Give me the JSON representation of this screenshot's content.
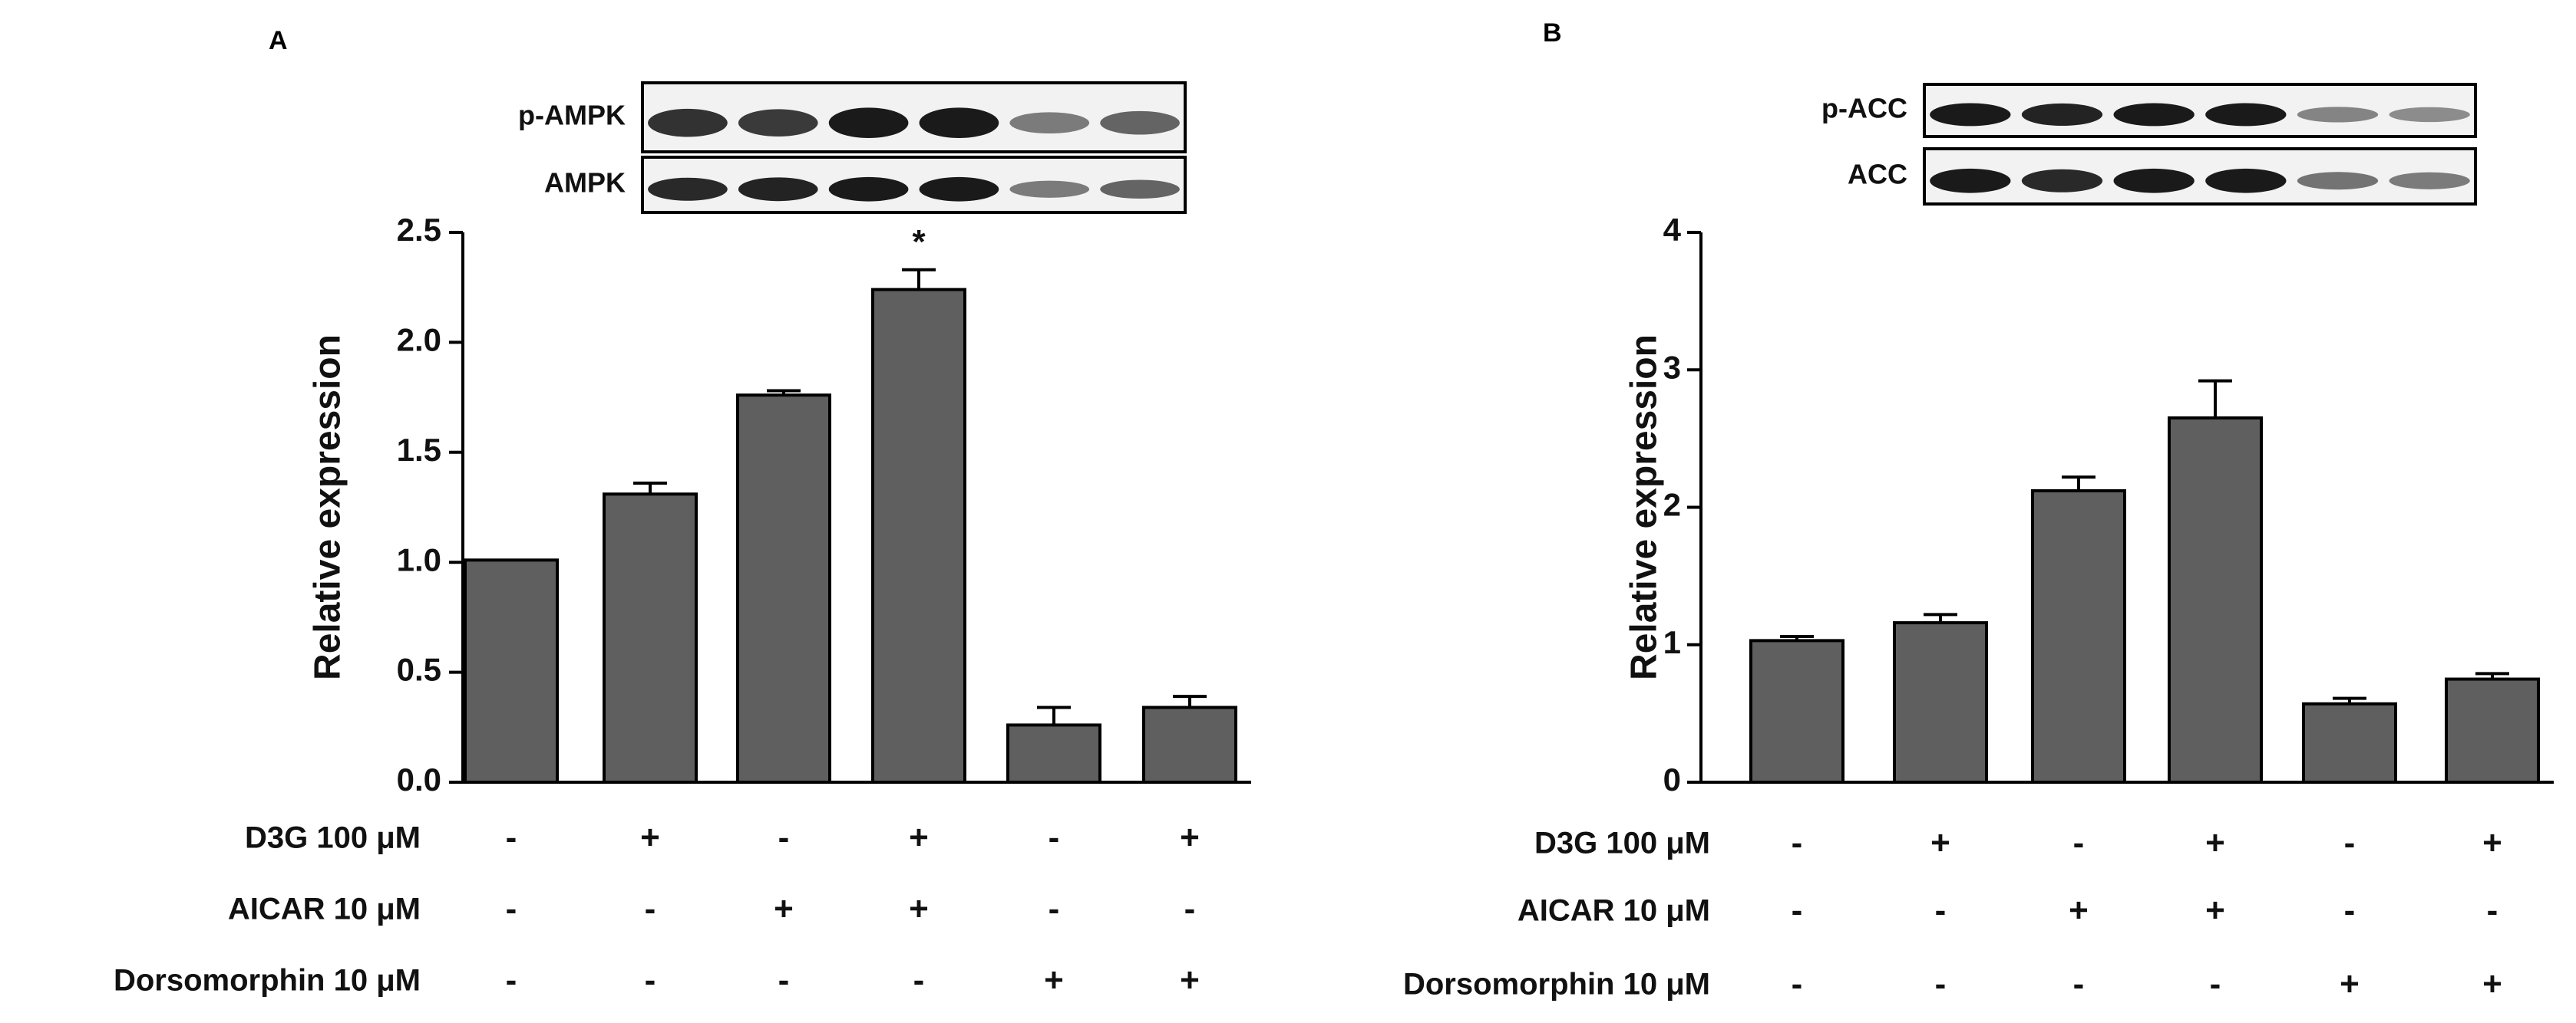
{
  "colors": {
    "bar": "#5f5f5f",
    "bar_stroke": "#000000",
    "axis": "#000000",
    "blot_band": "#1a1a1a",
    "blot_bg": "#f2f2f2"
  },
  "chart_data": [
    {
      "type": "bar",
      "panel": "A",
      "blots": [
        {
          "label": "p-AMPK",
          "intensities": [
            0.85,
            0.8,
            1.0,
            1.0,
            0.4,
            0.55
          ]
        },
        {
          "label": "AMPK",
          "intensities": [
            0.9,
            0.95,
            1.0,
            1.0,
            0.4,
            0.55
          ]
        }
      ],
      "ylabel": "Relative expression",
      "ylim": [
        0,
        2.5
      ],
      "yticks": [
        "0.0",
        "0.5",
        "1.0",
        "1.5",
        "2.0",
        "2.5"
      ],
      "ytick_values": [
        0,
        0.5,
        1.0,
        1.5,
        2.0,
        2.5
      ],
      "values": [
        1.01,
        1.31,
        1.76,
        2.24,
        0.26,
        0.34
      ],
      "errors": [
        0,
        0.05,
        0.02,
        0.09,
        0.08,
        0.05
      ],
      "annotations": [
        "",
        "",
        "",
        "*",
        "",
        ""
      ],
      "conditions": [
        {
          "label": "D3G 100 μM",
          "signs": [
            "-",
            "+",
            "-",
            "+",
            "-",
            "+"
          ]
        },
        {
          "label": "AICAR 10 μM",
          "signs": [
            "-",
            "-",
            "+",
            "+",
            "-",
            "-"
          ]
        },
        {
          "label": "Dorsomorphin 10 μM",
          "signs": [
            "-",
            "-",
            "-",
            "-",
            "+",
            "+"
          ]
        }
      ]
    },
    {
      "type": "bar",
      "panel": "B",
      "blots": [
        {
          "label": "p-ACC",
          "intensities": [
            1.0,
            0.95,
            1.0,
            1.0,
            0.35,
            0.3
          ]
        },
        {
          "label": "ACC",
          "intensities": [
            1.0,
            0.9,
            1.0,
            1.0,
            0.45,
            0.4
          ]
        }
      ],
      "ylabel": "Relative expression",
      "ylim": [
        0,
        4
      ],
      "yticks": [
        "0",
        "1",
        "2",
        "3",
        "4"
      ],
      "ytick_values": [
        0,
        1,
        2,
        3,
        4
      ],
      "values": [
        1.03,
        1.16,
        2.12,
        2.65,
        0.57,
        0.75
      ],
      "errors": [
        0.03,
        0.06,
        0.1,
        0.27,
        0.04,
        0.04
      ],
      "annotations": [
        "",
        "",
        "",
        "",
        "",
        ""
      ],
      "conditions": [
        {
          "label": "D3G 100 μM",
          "signs": [
            "-",
            "+",
            "-",
            "+",
            "-",
            "+"
          ]
        },
        {
          "label": "AICAR 10 μM",
          "signs": [
            "-",
            "-",
            "+",
            "+",
            "-",
            "-"
          ]
        },
        {
          "label": "Dorsomorphin 10 μM",
          "signs": [
            "-",
            "-",
            "-",
            "-",
            "+",
            "+"
          ]
        }
      ]
    }
  ]
}
